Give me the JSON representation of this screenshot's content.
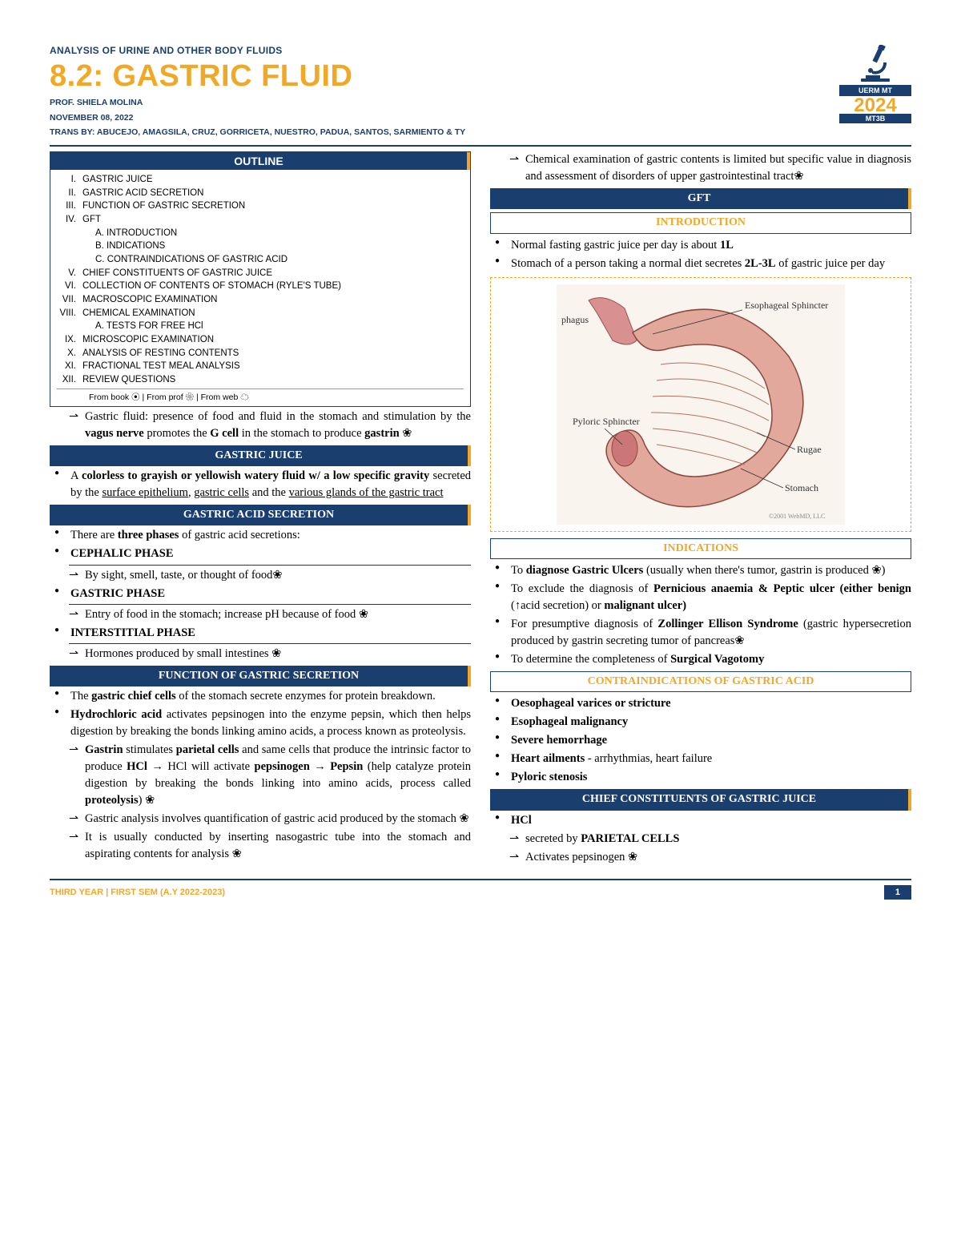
{
  "header": {
    "course": "ANALYSIS OF URINE AND OTHER BODY FLUIDS",
    "title": "8.2: GASTRIC FLUID",
    "prof": "PROF. SHIELA MOLINA",
    "date": "NOVEMBER 08, 2022",
    "trans": "TRANS BY: ABUCEJO, AMAGSILA, CRUZ, GORRICETA, NUESTRO, PADUA, SANTOS, SARMIENTO & TY",
    "logo_uerm": "UERM MT",
    "logo_year": "2024",
    "logo_sub": "MT3B"
  },
  "outline": {
    "title": "OUTLINE",
    "items": [
      {
        "rn": "I.",
        "t": "GASTRIC JUICE"
      },
      {
        "rn": "II.",
        "t": "GASTRIC ACID SECRETION"
      },
      {
        "rn": "III.",
        "t": "FUNCTION OF GASTRIC SECRETION"
      },
      {
        "rn": "IV.",
        "t": "GFT"
      },
      {
        "rn": "",
        "t": "A.  INTRODUCTION",
        "sub": true
      },
      {
        "rn": "",
        "t": "B.  INDICATIONS",
        "sub": true
      },
      {
        "rn": "",
        "t": "C.  CONTRAINDICATIONS OF GASTRIC ACID",
        "sub": true
      },
      {
        "rn": "V.",
        "t": "CHIEF CONSTITUENTS OF GASTRIC JUICE"
      },
      {
        "rn": "VI.",
        "t": "COLLECTION OF CONTENTS OF STOMACH (RYLE'S TUBE)"
      },
      {
        "rn": "VII.",
        "t": "MACROSCOPIC EXAMINATION"
      },
      {
        "rn": "VIII.",
        "t": "CHEMICAL EXAMINATION"
      },
      {
        "rn": "",
        "t": "A.  TESTS FOR FREE HCl",
        "sub": true
      },
      {
        "rn": "IX.",
        "t": "MICROSCOPIC EXAMINATION"
      },
      {
        "rn": "X.",
        "t": "ANALYSIS OF RESTING CONTENTS"
      },
      {
        "rn": "XI.",
        "t": "FRACTIONAL TEST MEAL ANALYSIS"
      },
      {
        "rn": "XII.",
        "t": "REVIEW QUESTIONS"
      }
    ],
    "legend": "From book ⦿ | From prof ❀ | From web ☁"
  },
  "left": {
    "intro_arrow": "Gastric fluid: presence of food and fluid in the stomach and stimulation by the <b>vagus nerve</b> promotes the <b>G cell</b> in the stomach to produce <b>gastrin</b> ❀",
    "sec1_title": "GASTRIC JUICE",
    "sec1_b1": "A <b>colorless to grayish or yellowish watery fluid  w/ a low specific gravity</b> secreted by the  <span class='u'>surface epithelium</span>, <span class='u'>gastric cells</span> and the  <span class='u'>various glands of the gastric tract</span>",
    "sec2_title": "GASTRIC ACID SECRETION",
    "sec2_intro": "There are <b>three phases</b> of gastric acid  secretions:",
    "p1": "CEPHALIC PHASE",
    "p1_a": "By sight, smell, taste, or thought of food❀",
    "p2": "GASTRIC PHASE",
    "p2_a": "Entry of food in the stomach; increase pH because of food ❀",
    "p3": "INTERSTITIAL PHASE",
    "p3_a": "Hormones produced by small intestines ❀",
    "sec3_title": "FUNCTION OF GASTRIC SECRETION",
    "sec3_b1": "The <b>gastric chief cells</b> of the stomach secrete  enzymes for protein breakdown.",
    "sec3_b2": "<b>Hydrochloric acid</b> activates pepsinogen into  the enzyme pepsin, which then helps  digestion by breaking the bonds linking amino  acids, a process known as proteolysis.",
    "sec3_a1": "<b>Gastrin</b> stimulates <b>parietal cells</b> and same cells that produce the intrinsic factor to produce <b>HCl</b> → HCl will activate <b>pepsinogen → Pepsin</b> (help catalyze protein digestion by breaking the bonds linking into amino acids, process called <b>proteolysis</b>) ❀",
    "sec3_a2": "Gastric analysis involves quantification of gastric acid produced by the stomach ❀",
    "sec3_a3": "It is usually conducted by inserting nasogastric tube into the stomach and aspirating contents for analysis ❀"
  },
  "right": {
    "top_arrow": "Chemical examination of gastric contents is limited but specific value in diagnosis and assessment of disorders of upper gastrointestinal tract❀",
    "gft_title": "GFT",
    "intro_title": "INTRODUCTION",
    "intro_b1": "Normal fasting gastric  juice per day is about <b>1L</b>",
    "intro_b2": "Stomach of a person  taking a normal diet  secretes <b>2L-3L</b> of  gastric juice per day",
    "diagram_labels": {
      "esoph": "phagus",
      "esoph_sph": "Esophageal Sphincter",
      "pyloric": "Pyloric Sphincter",
      "rugae": "Rugae",
      "stomach": "Stomach",
      "credit": "©2001 WebMD, LLC"
    },
    "ind_title": "INDICATIONS",
    "ind_b1": "To <b>diagnose Gastric Ulcers</b> (usually when there's tumor, gastrin is produced ❀)",
    "ind_b2": "To exclude the diagnosis of  <b>Pernicious anaemia & Peptic ulcer (either benign</b> (↑acid secretion) or <b>malignant ulcer)</b>",
    "ind_b3": "For presumptive diagnosis of <b>Zollinger Ellison Syndrome</b> (gastric hypersecretion produced by gastrin secreting tumor of pancreas❀",
    "ind_b4": "To determine the completeness of  <b>Surgical Vagotomy</b>",
    "contra_title": "CONTRAINDICATIONS OF GASTRIC ACID",
    "c1": "Oesophageal varices or stricture",
    "c2": "Esophageal malignancy",
    "c3": "Severe hemorrhage",
    "c4": "Heart ailments",
    "c4_extra": " - arrhythmias, heart failure",
    "c5": "Pyloric stenosis",
    "chief_title": "CHIEF CONSTITUENTS OF GASTRIC JUICE",
    "chief_b1": "HCl",
    "chief_a1": "secreted by <b>PARIETAL  CELLS</b>",
    "chief_a2": "Activates pepsinogen ❀"
  },
  "footer": {
    "left": "THIRD YEAR | FIRST SEM (A.Y 2022-2023)",
    "page": "1"
  },
  "colors": {
    "navy": "#1a3e6e",
    "accent": "#f0a826"
  }
}
